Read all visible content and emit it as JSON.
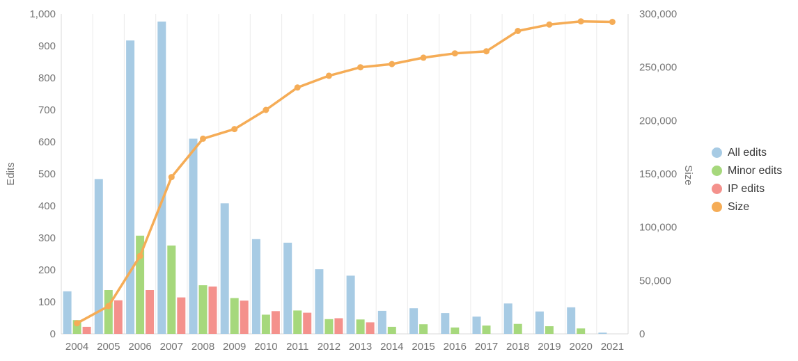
{
  "chart_data": {
    "type": "bar",
    "subtype": "combo-bar-line",
    "title": "",
    "categories": [
      "2004",
      "2005",
      "2006",
      "2007",
      "2008",
      "2009",
      "2010",
      "2011",
      "2012",
      "2013",
      "2014",
      "2015",
      "2016",
      "2017",
      "2018",
      "2019",
      "2020",
      "2021"
    ],
    "series": [
      {
        "name": "All edits",
        "kind": "bar",
        "axis": "left",
        "color": "#a7cbe4",
        "values": [
          133,
          484,
          917,
          976,
          610,
          408,
          296,
          285,
          202,
          182,
          72,
          80,
          65,
          54,
          95,
          70,
          83,
          4
        ]
      },
      {
        "name": "Minor edits",
        "kind": "bar",
        "axis": "left",
        "color": "#a6d87c",
        "values": [
          43,
          137,
          307,
          276,
          152,
          112,
          60,
          73,
          46,
          45,
          22,
          30,
          20,
          26,
          31,
          24,
          17,
          0
        ]
      },
      {
        "name": "IP edits",
        "kind": "bar",
        "axis": "left",
        "color": "#f4918c",
        "values": [
          22,
          105,
          137,
          114,
          148,
          104,
          71,
          66,
          49,
          36,
          0,
          0,
          0,
          0,
          0,
          0,
          0,
          0
        ]
      },
      {
        "name": "Size",
        "kind": "line",
        "axis": "right",
        "color": "#f5ac56",
        "values": [
          10000,
          26000,
          73000,
          147000,
          183000,
          192000,
          210000,
          231000,
          242000,
          250000,
          253000,
          259000,
          263000,
          265000,
          284000,
          290000,
          293000,
          292500
        ]
      }
    ],
    "left_axis": {
      "title": "Edits",
      "min": 0,
      "max": 1000,
      "tick_step": 100,
      "tick_labels": [
        "0",
        "100",
        "200",
        "300",
        "400",
        "500",
        "600",
        "700",
        "800",
        "900",
        "1,000"
      ]
    },
    "right_axis": {
      "title": "Size",
      "min": 0,
      "max": 300000,
      "tick_step": 50000,
      "tick_labels": [
        "0",
        "50,000",
        "100,000",
        "150,000",
        "200,000",
        "250,000",
        "300,000"
      ]
    },
    "legend_position": "right",
    "grid": "vertical-only",
    "colors": {
      "gridline": "#ebebeb",
      "axis_line": "#d9d9d9",
      "tick_text": "#757575",
      "legend_text": "#3a3a3a"
    }
  }
}
